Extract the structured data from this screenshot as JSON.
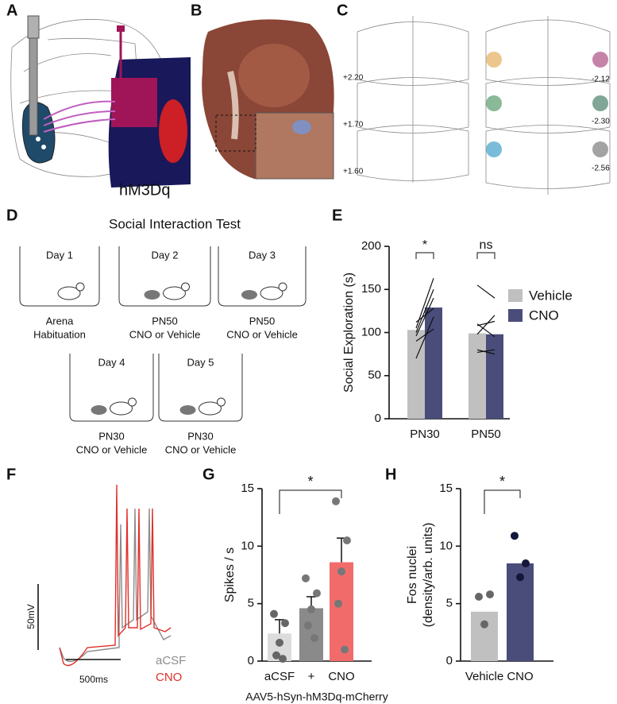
{
  "panel_labels": [
    "A",
    "B",
    "C",
    "D",
    "E",
    "F",
    "G",
    "H"
  ],
  "panel_a": {
    "label": "hM3Dq"
  },
  "panel_c": {
    "left_coords": [
      "+2.20",
      "+1.70",
      "+1.60"
    ],
    "right_coords": [
      "-2.12",
      "-2.30",
      "-2.56"
    ]
  },
  "panel_d": {
    "title": "Social Interaction Test",
    "days": [
      {
        "day": "Day 1",
        "caption": [
          "Arena",
          "Habituation"
        ]
      },
      {
        "day": "Day 2",
        "caption": [
          "PN50",
          "CNO or Vehicle"
        ]
      },
      {
        "day": "Day 3",
        "caption": [
          "PN50",
          "CNO or Vehicle"
        ]
      },
      {
        "day": "Day 4",
        "caption": [
          "PN30",
          "CNO or Vehicle"
        ]
      },
      {
        "day": "Day 5",
        "caption": [
          "PN30",
          "CNO or Vehicle"
        ]
      }
    ]
  },
  "panel_f": {
    "scale_y": "50mV",
    "scale_x": "500ms",
    "legend": [
      {
        "name": "aCSF",
        "color": "#8c8c8c"
      },
      {
        "name": "CNO",
        "color": "#e0302a"
      }
    ]
  },
  "chart_data": [
    {
      "type": "bar",
      "ylabel": "Social Exploration (s)",
      "categories": [
        "PN30",
        "PN50"
      ],
      "series": [
        {
          "name": "Vehicle",
          "color": "#c0c0c0",
          "values": [
            103,
            99
          ]
        },
        {
          "name": "CNO",
          "color": "#4a4c7a",
          "values": [
            129,
            98
          ]
        }
      ],
      "pairs": [
        [
          [
            70,
            118
          ],
          [
            90,
            104
          ],
          [
            100,
            150
          ],
          [
            105,
            163
          ],
          [
            112,
            128
          ],
          [
            96,
            140
          ]
        ],
        [
          [
            155,
            140
          ],
          [
            110,
            95
          ],
          [
            108,
            113
          ],
          [
            80,
            75
          ],
          [
            77,
            80
          ],
          [
            98,
            120
          ]
        ]
      ],
      "annotations": [
        "*",
        "ns"
      ],
      "ylim": [
        0,
        200
      ],
      "yticks": [
        0,
        50,
        100,
        150,
        200
      ],
      "legend": "right"
    },
    {
      "type": "bar",
      "ylabel": [
        "Spikes / s"
      ],
      "xlabel": "AAV5-hSyn-hM3Dq-mCherry",
      "categories": [
        "aCSF",
        "+",
        "CNO"
      ],
      "colors": [
        "#dcdcdc",
        "#8a8a8a",
        "#f26b6b"
      ],
      "values": [
        2.4,
        4.6,
        8.6
      ],
      "errors": [
        1.2,
        1.0,
        2.1
      ],
      "points": [
        [
          4.1,
          3.3,
          1.6,
          0.5,
          0.2
        ],
        [
          7.2,
          5.9,
          4.5,
          3.1,
          2.0
        ],
        [
          13.9,
          10.5,
          7.8,
          5.0,
          1.0
        ]
      ],
      "annotations": [
        "*"
      ],
      "ylim": [
        0,
        15
      ],
      "yticks": [
        0,
        5,
        10,
        15
      ]
    },
    {
      "type": "bar",
      "ylabel": [
        "Fos nuclei",
        "(density/arb. units)"
      ],
      "categories": [
        "Vehicle",
        "CNO"
      ],
      "colors": [
        "#c0c0c0",
        "#4a4c7a"
      ],
      "values": [
        4.3,
        8.5
      ],
      "points": [
        [
          5.6,
          5.8,
          3.2
        ],
        [
          10.9,
          8.5,
          7.3
        ]
      ],
      "annotations": [
        "*"
      ],
      "ylim": [
        0,
        15
      ],
      "yticks": [
        0,
        5,
        10,
        15
      ]
    }
  ]
}
